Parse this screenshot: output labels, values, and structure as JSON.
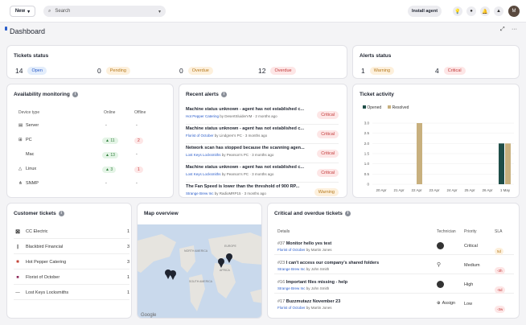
{
  "topbar": {
    "new_label": "New",
    "search_placeholder": "Search",
    "install_label": "Install agent",
    "avatar_initials": "M"
  },
  "page_title": "Dashboard",
  "tickets_status": {
    "title": "Tickets status",
    "items": [
      {
        "count": "14",
        "label": "Open"
      },
      {
        "count": "0",
        "label": "Pending"
      },
      {
        "count": "0",
        "label": "Overdue"
      },
      {
        "count": "12",
        "label": "Overdue"
      }
    ]
  },
  "alerts_status": {
    "title": "Alerts status",
    "items": [
      {
        "count": "1",
        "label": "Warning"
      },
      {
        "count": "4",
        "label": "Critical"
      }
    ]
  },
  "availability": {
    "title": "Availability monitoring",
    "headers": [
      "Device type",
      "Online",
      "Offline"
    ],
    "rows": [
      {
        "type": "Server",
        "online": "-",
        "offline": "-"
      },
      {
        "type": "PC",
        "online": "11",
        "offline": "2"
      },
      {
        "type": "Mac",
        "online": "13",
        "offline": "-"
      },
      {
        "type": "Linux",
        "online": "3",
        "offline": "1"
      },
      {
        "type": "SNMP",
        "online": "-",
        "offline": "-"
      }
    ]
  },
  "recent_alerts": {
    "title": "Recent alerts",
    "items": [
      {
        "title": "Machine status unknown - agent has not established c...",
        "sub": "Hot Pepper Catering",
        "by": "by DesertSluiderVM",
        "time": "2 months ago",
        "badge": "Critical"
      },
      {
        "title": "Machine status unknown - agent has not established c...",
        "sub": "Florist of October",
        "by": "by Lindgren's PC",
        "time": "3 months ago",
        "badge": "Critical"
      },
      {
        "title": "Network scan has stopped because the scanning agen...",
        "sub": "Lost Keys Locksmiths",
        "by": "by Pearson's PC",
        "time": "3 months ago",
        "badge": "Critical"
      },
      {
        "title": "Machine status unknown - agent has not established c...",
        "sub": "Lost Keys Locksmiths",
        "by": "by Pearson's PC",
        "time": "3 months ago",
        "badge": "Critical"
      },
      {
        "title": "The Fan Speed is lower than the threshold of 900 RP...",
        "sub": "Strange Brew Inc",
        "by": "by RadioMRP15",
        "time": "3 months ago",
        "badge": "Warning"
      }
    ]
  },
  "ticket_activity": {
    "title": "Ticket activity",
    "legend": [
      "Opened",
      "Resolved"
    ]
  },
  "chart_data": {
    "type": "bar",
    "categories": [
      "20 Apr",
      "21 Apr",
      "22 Apr",
      "23 Apr",
      "24 Apr",
      "25 Apr",
      "26 Apr",
      "1 May"
    ],
    "series": [
      {
        "name": "Opened",
        "values": [
          0,
          0,
          0,
          0,
          0,
          0,
          0,
          2
        ]
      },
      {
        "name": "Resolved",
        "values": [
          0,
          0,
          3,
          0,
          0,
          0,
          0,
          2
        ]
      }
    ],
    "ylim": [
      0,
      3
    ],
    "yticks": [
      "0",
      "0.5",
      "1.0",
      "1.5",
      "2.0",
      "2.5",
      "3.0"
    ],
    "colors": {
      "Opened": "#1f4e48",
      "Resolved": "#c8b07e"
    }
  },
  "customer_tickets": {
    "title": "Customer tickets",
    "rows": [
      {
        "name": "CC Electric",
        "count": "1"
      },
      {
        "name": "Blackbird Financial",
        "count": "3"
      },
      {
        "name": "Hot Pepper Catering",
        "count": "3"
      },
      {
        "name": "Florist of October",
        "count": "1"
      },
      {
        "name": "Lost Keys Locksmiths",
        "count": "1"
      }
    ]
  },
  "map": {
    "title": "Map overview",
    "labels": [
      "EUROPE",
      "AFRICA",
      "SOUTH AMERICA",
      "NORTH AMERICA"
    ],
    "brand": "Google"
  },
  "critical": {
    "title": "Critical and overdue tickets",
    "headers": [
      "Details",
      "Technician",
      "Priority",
      "SLA"
    ],
    "rows": [
      {
        "num": "#37",
        "title": "Monitor hello yes test",
        "org": "Florist of October",
        "by": "by Martin Jones",
        "priority": "Critical",
        "sla": "5d"
      },
      {
        "num": "#23",
        "title": "I can't access our company's shared folders",
        "org": "Strange Brew Inc",
        "by": "by John Smith",
        "priority": "Medium",
        "sla": "-3h"
      },
      {
        "num": "#16",
        "title": "Important files missing - help",
        "org": "Strange Brew Inc",
        "by": "by John Smith",
        "priority": "High",
        "sla": "-5d"
      },
      {
        "num": "#17",
        "title": "Buzzmutazz November 23",
        "org": "Florist of October",
        "by": "by Martin Jones",
        "priority": "Low",
        "sla": "-3w",
        "assign": "Assign"
      }
    ]
  }
}
